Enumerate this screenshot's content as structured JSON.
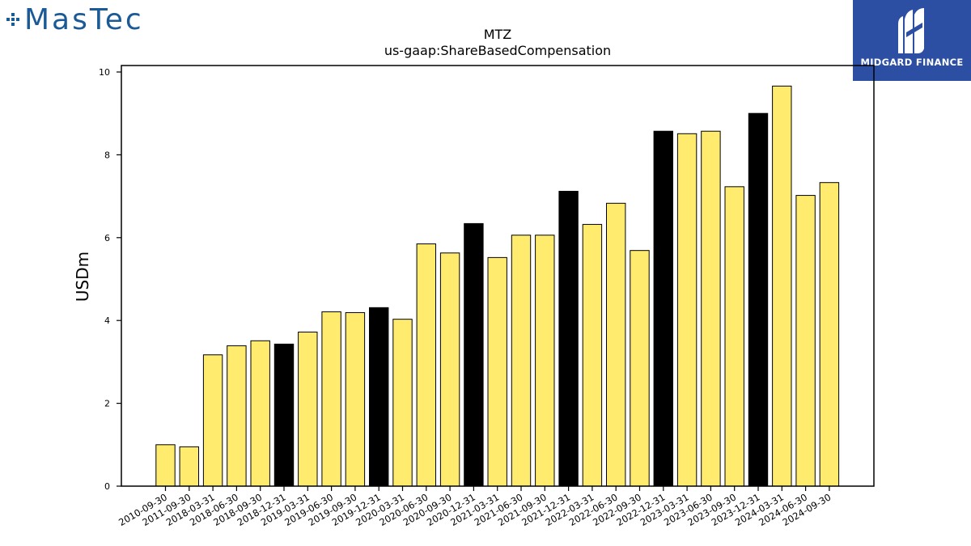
{
  "logos": {
    "left_text": "MasTec",
    "right_text": "MIDGARD FINANCE"
  },
  "chart_data": {
    "type": "bar",
    "title": "MTZ",
    "subtitle": "us-gaap:ShareBasedCompensation",
    "ylabel": "USDm",
    "xlabel": "",
    "ylim": [
      0,
      10
    ],
    "yticks": [
      0,
      2,
      4,
      6,
      8,
      10
    ],
    "grid": false,
    "colors": {
      "quarter": "#ffeb6e",
      "year_end": "#000000",
      "edge": "#000000"
    },
    "categories": [
      "2010-09-30",
      "2011-09-30",
      "2018-03-31",
      "2018-06-30",
      "2018-09-30",
      "2018-12-31",
      "2019-03-31",
      "2019-06-30",
      "2019-09-30",
      "2019-12-31",
      "2020-03-31",
      "2020-06-30",
      "2020-09-30",
      "2020-12-31",
      "2021-03-31",
      "2021-06-30",
      "2021-09-30",
      "2021-12-31",
      "2022-03-31",
      "2022-06-30",
      "2022-09-30",
      "2022-12-31",
      "2023-03-31",
      "2023-06-30",
      "2023-09-30",
      "2023-12-31",
      "2024-03-31",
      "2024-06-30",
      "2024-09-30"
    ],
    "values": [
      1.0,
      0.95,
      3.17,
      3.39,
      3.51,
      3.43,
      3.72,
      4.21,
      4.19,
      4.31,
      4.03,
      5.85,
      5.63,
      6.34,
      5.52,
      6.06,
      6.06,
      7.12,
      6.32,
      6.83,
      5.69,
      8.57,
      8.51,
      8.57,
      7.23,
      9.0,
      9.66,
      7.02,
      7.33
    ],
    "year_end": [
      false,
      false,
      false,
      false,
      false,
      true,
      false,
      false,
      false,
      true,
      false,
      false,
      false,
      true,
      false,
      false,
      false,
      true,
      false,
      false,
      false,
      true,
      false,
      false,
      false,
      true,
      false,
      false,
      false
    ]
  }
}
